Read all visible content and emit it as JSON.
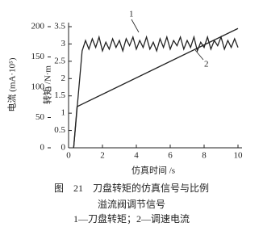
{
  "chart_data": {
    "type": "line",
    "y_label": "转矩 /N·m",
    "y2_label": "电流 (mA·10⁵)",
    "x_label": "仿真时间 /s",
    "xlim": [
      0,
      10
    ],
    "xticks": [
      0,
      2,
      4,
      6,
      8,
      10
    ],
    "ylim": [
      0,
      3.5
    ],
    "yticks": [
      0,
      0.5,
      1,
      1.5,
      2,
      2.5,
      3,
      3.5
    ],
    "y2lim": [
      0,
      200
    ],
    "y2ticks": [
      0,
      50,
      100,
      150,
      200
    ],
    "series": [
      {
        "name": "1",
        "color": "#222222",
        "x": [
          0.3,
          0.8,
          1.0,
          1.2,
          1.4,
          1.6,
          1.8,
          2.0,
          2.2,
          2.4,
          2.6,
          2.8,
          3.0,
          3.2,
          3.4,
          3.6,
          3.8,
          4.0,
          4.2,
          4.4,
          4.6,
          4.8,
          5.0,
          5.2,
          5.4,
          5.6,
          5.8,
          6.0,
          6.2,
          6.4,
          6.6,
          6.8,
          7.0,
          7.2,
          7.4,
          7.6,
          7.8,
          8.0,
          8.2,
          8.4,
          8.6,
          8.8,
          9.0,
          9.2,
          9.4,
          9.6,
          9.8,
          10.0
        ],
        "values": [
          0,
          2.8,
          3.1,
          2.85,
          3.15,
          2.9,
          3.2,
          2.8,
          3.05,
          2.85,
          3.15,
          2.9,
          3.1,
          2.8,
          3.15,
          2.95,
          3.2,
          2.85,
          3.1,
          2.9,
          3.2,
          2.85,
          3.05,
          2.8,
          3.15,
          2.9,
          3.2,
          2.85,
          3.1,
          2.95,
          3.2,
          2.85,
          3.1,
          2.9,
          3.2,
          2.8,
          3.05,
          2.9,
          3.2,
          2.85,
          3.1,
          2.95,
          3.2,
          2.85,
          3.1,
          2.9,
          3.15,
          2.9
        ]
      },
      {
        "name": "2",
        "color": "#222222",
        "axis": "y2",
        "x": [
          0.3,
          0.5,
          10.0
        ],
        "values": [
          0,
          68,
          197
        ]
      }
    ],
    "caption": [
      "图　21　刀盘转矩的仿真信号与比例",
      "溢流阀调节信号",
      "1—刀盘转矩；2—调速电流"
    ]
  }
}
